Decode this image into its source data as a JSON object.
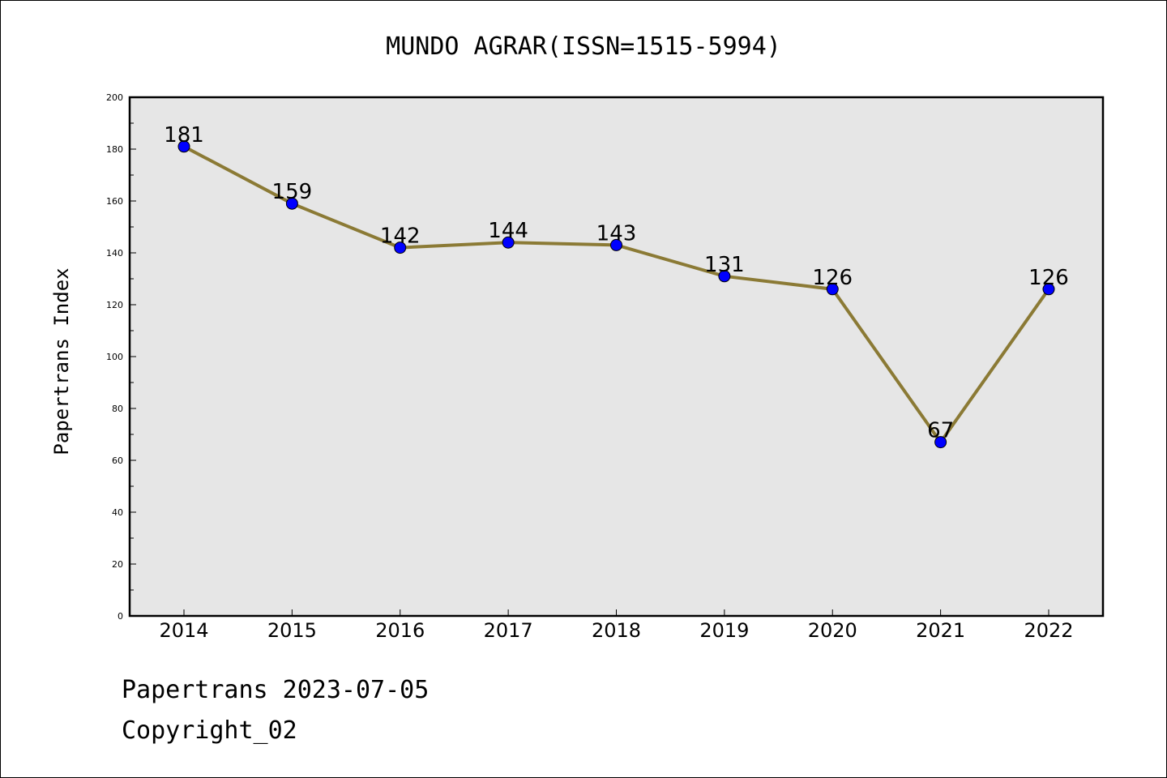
{
  "footer": {
    "line1": "Papertrans 2023-07-05",
    "line2": "Copyright_02"
  },
  "colors": {
    "line": "#8b7a35",
    "marker": "#0000ff",
    "plot_background": "#e6e6e6",
    "frame": "#000000"
  },
  "chart_data": {
    "type": "line",
    "title": "MUNDO AGRAR(ISSN=1515-5994)",
    "xlabel": "",
    "ylabel": "Papertrans Index",
    "categories": [
      "2014",
      "2015",
      "2016",
      "2017",
      "2018",
      "2019",
      "2020",
      "2021",
      "2022"
    ],
    "values": [
      181,
      159,
      142,
      144,
      143,
      131,
      126,
      67,
      126
    ],
    "data_labels": [
      "181",
      "159",
      "142",
      "144",
      "143",
      "131",
      "126",
      "67",
      "126"
    ],
    "ylim": [
      0,
      200
    ],
    "yticks": [
      "0",
      "20",
      "40",
      "60",
      "80",
      "100",
      "120",
      "140",
      "160",
      "180",
      "200"
    ],
    "grid": false,
    "legend": "none"
  }
}
